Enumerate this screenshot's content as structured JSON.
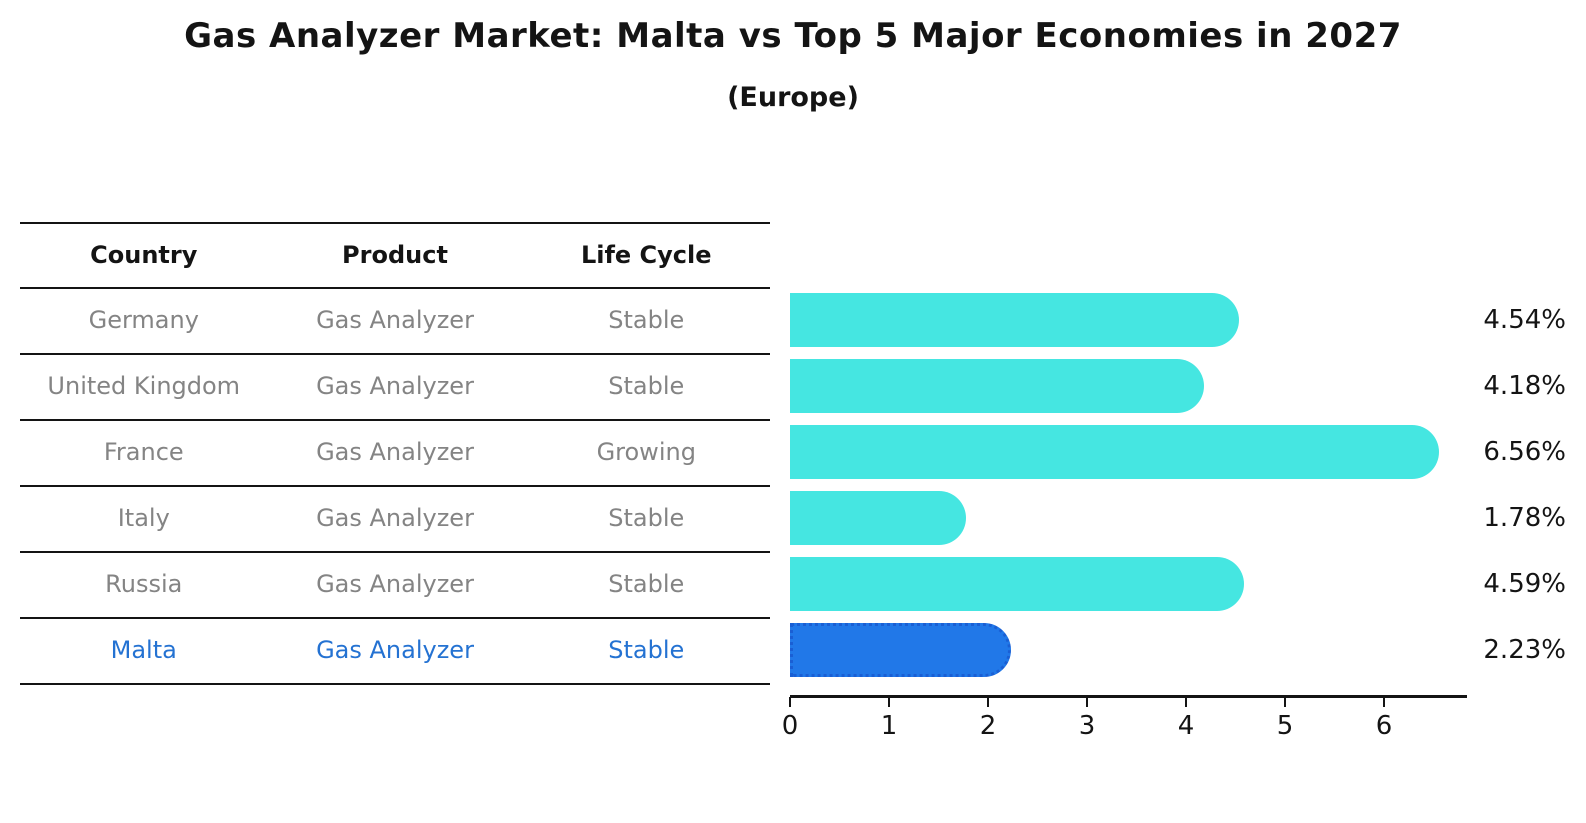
{
  "title": "Gas Analyzer Market: Malta vs Top 5 Major Economies in 2027",
  "subtitle": "(Europe)",
  "table": {
    "headers": [
      "Country",
      "Product",
      "Life Cycle"
    ],
    "rows": [
      {
        "country": "Germany",
        "product": "Gas Analyzer",
        "life_cycle": "Stable",
        "highlight": false
      },
      {
        "country": "United Kingdom",
        "product": "Gas Analyzer",
        "life_cycle": "Stable",
        "highlight": false
      },
      {
        "country": "France",
        "product": "Gas Analyzer",
        "life_cycle": "Growing",
        "highlight": false
      },
      {
        "country": "Italy",
        "product": "Gas Analyzer",
        "life_cycle": "Stable",
        "highlight": false
      },
      {
        "country": "Russia",
        "product": "Gas Analyzer",
        "life_cycle": "Stable",
        "highlight": false
      },
      {
        "country": "Malta",
        "product": "Gas Analyzer",
        "life_cycle": "Stable",
        "highlight": true
      }
    ]
  },
  "chart_data": {
    "type": "bar",
    "orientation": "horizontal",
    "categories": [
      "Germany",
      "United Kingdom",
      "France",
      "Italy",
      "Russia",
      "Malta"
    ],
    "values": [
      4.54,
      4.18,
      6.56,
      1.78,
      4.59,
      2.23
    ],
    "value_labels": [
      "4.54%",
      "4.18%",
      "6.56%",
      "1.78%",
      "4.59%",
      "2.23%"
    ],
    "xticks": [
      "0",
      "1",
      "2",
      "3",
      "4",
      "5",
      "6"
    ],
    "xlim": [
      0,
      6.84
    ],
    "grid": false,
    "highlight_index": 5,
    "bar_color": "#45E6E1",
    "highlight_bar_color": "#2178E8",
    "highlight_border_color": "#1A5FD4"
  },
  "colors": {
    "background": "#FFFFFF",
    "text_strong": "#141414",
    "text_muted": "#848484",
    "highlight_text": "#2472D2"
  }
}
